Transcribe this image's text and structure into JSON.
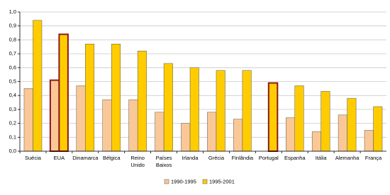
{
  "chart_data": {
    "type": "bar",
    "categories": [
      "Suécia",
      "EUA",
      "Dinamarca",
      "Bélgica",
      "Reino Unido",
      "Países Baixos",
      "Irlanda",
      "Grécia",
      "Finlândia",
      "Portugal",
      "Espanha",
      "Itália",
      "Alemanha",
      "França"
    ],
    "series": [
      {
        "name": "1990-1995",
        "color": "#fac896",
        "values": [
          0.45,
          0.51,
          0.47,
          0.37,
          0.37,
          0.28,
          0.2,
          0.28,
          0.23,
          null,
          0.24,
          0.14,
          0.26,
          0.15
        ]
      },
      {
        "name": "1995-2001",
        "color": "#ffcc00",
        "values": [
          0.94,
          0.84,
          0.77,
          0.77,
          0.72,
          0.63,
          0.6,
          0.58,
          0.58,
          0.49,
          0.47,
          0.43,
          0.38,
          0.32
        ]
      }
    ],
    "highlight": [
      1,
      9
    ],
    "highlight_color": "#8b1a1a",
    "ylim": [
      0,
      1
    ],
    "yticks": [
      {
        "value": 0,
        "label": "0,0"
      },
      {
        "value": 0.1,
        "label": "0,1"
      },
      {
        "value": 0.2,
        "label": "0,2"
      },
      {
        "value": 0.3,
        "label": "0,3"
      },
      {
        "value": 0.4,
        "label": "0,4"
      },
      {
        "value": 0.5,
        "label": "0,5"
      },
      {
        "value": 0.6,
        "label": "0,6"
      },
      {
        "value": 0.7,
        "label": "0,7"
      },
      {
        "value": 0.8,
        "label": "0,8"
      },
      {
        "value": 0.9,
        "label": "0,9"
      },
      {
        "value": 1,
        "label": "1,0"
      }
    ],
    "grid": true,
    "legend": "bottom"
  }
}
